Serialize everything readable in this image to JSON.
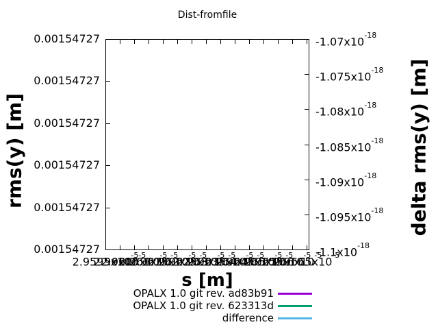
{
  "title": "Dist-fromfile",
  "left_axis": {
    "label": "rms(y) [m]",
    "ticks": [
      "0.00154727",
      "0.00154727",
      "0.00154727",
      "0.00154727",
      "0.00154727",
      "0.00154727"
    ]
  },
  "right_axis": {
    "label": "delta rms(y) [m]",
    "ticks": [
      {
        "base": "-1.07x10",
        "exp": "-18"
      },
      {
        "base": "-1.075x10",
        "exp": "-18"
      },
      {
        "base": "-1.08x10",
        "exp": "-18"
      },
      {
        "base": "-1.085x10",
        "exp": "-18"
      },
      {
        "base": "-1.09x10",
        "exp": "-18"
      },
      {
        "base": "-1.095x10",
        "exp": "-18"
      },
      {
        "base": "-1.1x10",
        "exp": "-18"
      }
    ]
  },
  "x_axis": {
    "label": "s [m]",
    "ticks": [
      {
        "base": "2.9595x10",
        "exp": "-5"
      },
      {
        "base": "2.96x10",
        "exp": "-5"
      },
      {
        "base": "2.9605x10",
        "exp": "-5"
      },
      {
        "base": "2.961x10",
        "exp": "-5"
      },
      {
        "base": "2.9615x10",
        "exp": "-5"
      },
      {
        "base": "2.962x10",
        "exp": "-5"
      },
      {
        "base": "2.9625x10",
        "exp": "-5"
      },
      {
        "base": "2.963x10",
        "exp": "-5"
      },
      {
        "base": "2.9635x10",
        "exp": "-5"
      },
      {
        "base": "2.964x10",
        "exp": "-5"
      },
      {
        "base": "2.9645x10",
        "exp": "-5"
      },
      {
        "base": "2.965x10",
        "exp": "-5"
      },
      {
        "base": "2.9655x10",
        "exp": "-5"
      },
      {
        "base": "2.966x10",
        "exp": "-5"
      },
      {
        "base": "2.9665x10",
        "exp": "-5"
      }
    ]
  },
  "legend": {
    "entries": [
      {
        "label": "OPALX 1.0 git rev. ad83b91",
        "color": "#9400d3"
      },
      {
        "label": "OPALX 1.0 git rev. 623313d",
        "color": "#009e73"
      },
      {
        "label": "difference",
        "color": "#56b4e9"
      }
    ]
  },
  "colors": {
    "border": "#000000",
    "text": "#000000",
    "background": "#ffffff"
  },
  "chart_data": {
    "type": "line",
    "title": "Dist-fromfile",
    "xlabel": "s [m]",
    "ylabel": "rms(y) [m]",
    "y2label": "delta rms(y) [m]",
    "y_tick_labels": [
      "0.00154727",
      "0.00154727",
      "0.00154727",
      "0.00154727",
      "0.00154727",
      "0.00154727"
    ],
    "y2_tick_labels": [
      "-1.07x10^-18",
      "-1.075x10^-18",
      "-1.08x10^-18",
      "-1.085x10^-18",
      "-1.09x10^-18",
      "-1.095x10^-18",
      "-1.1x10^-18"
    ],
    "y2lim": [
      -1.1e-18,
      -1.07e-18
    ],
    "x_tick_suffix": "x10^-5",
    "x_tick_labels_overlapping": true,
    "grid": false,
    "legend_position": "below-right",
    "series": [
      {
        "name": "OPALX 1.0 git rev. ad83b91",
        "color": "#9400d3",
        "values": []
      },
      {
        "name": "OPALX 1.0 git rev. 623313d",
        "color": "#009e73",
        "values": []
      },
      {
        "name": "difference",
        "color": "#56b4e9",
        "values": []
      }
    ]
  }
}
